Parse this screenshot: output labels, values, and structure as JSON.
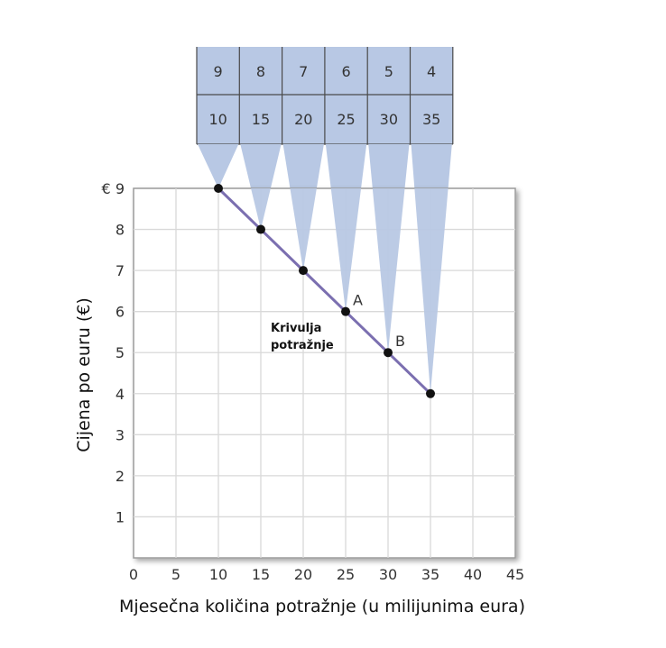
{
  "chart_data": {
    "type": "line",
    "xlabel": "Mjesečna količina potražnje (u milijunima eura)",
    "ylabel": "Cijena po euru (€)",
    "xlim": [
      0,
      45
    ],
    "ylim": [
      0,
      9
    ],
    "x_ticks": [
      "0",
      "5",
      "10",
      "15",
      "20",
      "25",
      "30",
      "35",
      "40",
      "45"
    ],
    "y_ticks": [
      "1",
      "2",
      "3",
      "4",
      "5",
      "6",
      "7",
      "8",
      "9"
    ],
    "y_top_tick": "€ 9",
    "grid": true,
    "series": [
      {
        "x": [
          10,
          15,
          20,
          25,
          30,
          35
        ],
        "y": [
          9,
          8,
          7,
          6,
          5,
          4
        ],
        "color": "#7b6fb0"
      }
    ],
    "point_labels": [
      {
        "label": "A",
        "x": 25,
        "y": 6
      },
      {
        "label": "B",
        "x": 30,
        "y": 5
      }
    ],
    "annotation": {
      "line1": "Krivulja",
      "line2": "potražnje"
    },
    "table": {
      "price_row": [
        "9",
        "8",
        "7",
        "6",
        "5",
        "4"
      ],
      "quantity_row": [
        "10",
        "15",
        "20",
        "25",
        "30",
        "35"
      ]
    },
    "colors": {
      "table_fill": "#b8c8e4",
      "grid": "#d9d9d9",
      "plot_bg": "#ffffff"
    }
  }
}
